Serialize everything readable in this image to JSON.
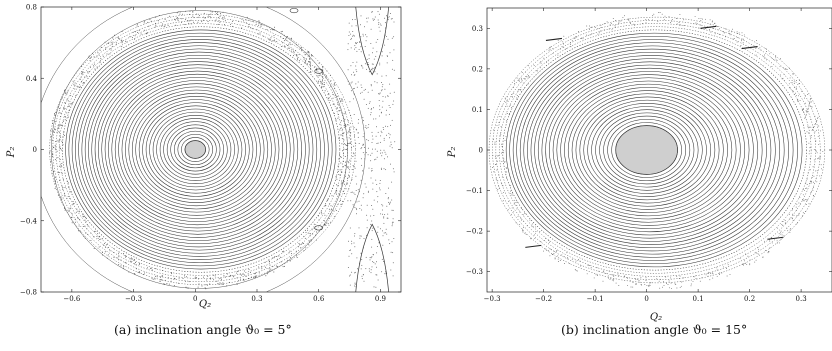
{
  "chart_data": [
    {
      "type": "scatter",
      "caption": "(a) inclination angle ϑ₀ = 5°",
      "xlabel": "Q₂",
      "ylabel": "P₂",
      "xlim": [
        -0.75,
        1.0
      ],
      "ylim": [
        -0.8,
        0.8
      ],
      "xticks": [
        -0.6,
        -0.3,
        0,
        0.3,
        0.6,
        0.9
      ],
      "yticks": [
        -0.8,
        -0.4,
        0,
        0.4,
        0.8
      ],
      "xtick_labels": [
        "−0.6",
        "−0.3",
        "0",
        "0.3",
        "0.6",
        "0.9"
      ],
      "ytick_labels": [
        "−0.8",
        "−0.4",
        "0",
        "0.4",
        "0.8"
      ],
      "center": [
        0,
        0
      ],
      "island_radius": [
        0.05,
        0.05
      ],
      "curve_count": 40,
      "outer_extent": {
        "left": -0.68,
        "right": 0.75,
        "top": 0.76,
        "bottom": -0.76
      },
      "grid": false,
      "legend": "none"
    },
    {
      "type": "scatter",
      "caption": "(b) inclination angle ϑ₀ = 15°",
      "xlabel": "Q₂",
      "ylabel": "P₂",
      "xlim": [
        -0.31,
        0.36
      ],
      "ylim": [
        -0.35,
        0.35
      ],
      "xticks": [
        -0.3,
        -0.2,
        -0.1,
        0,
        0.1,
        0.2,
        0.3
      ],
      "yticks": [
        -0.3,
        -0.2,
        -0.1,
        0,
        0.1,
        0.2,
        0.3
      ],
      "xtick_labels": [
        "−0.3",
        "−0.2",
        "−0.1",
        "0",
        "0.1",
        "0.2",
        "0.3"
      ],
      "ytick_labels": [
        "−0.3",
        "−0.2",
        "−0.1",
        "0",
        "0.1",
        "0.2",
        "0.3"
      ],
      "center": [
        0,
        0
      ],
      "island_radius": [
        0.06,
        0.06
      ],
      "curve_count": 34,
      "outer_extent": {
        "left": -0.29,
        "right": 0.33,
        "top": 0.325,
        "bottom": -0.33
      },
      "grid": false,
      "legend": "none"
    }
  ]
}
